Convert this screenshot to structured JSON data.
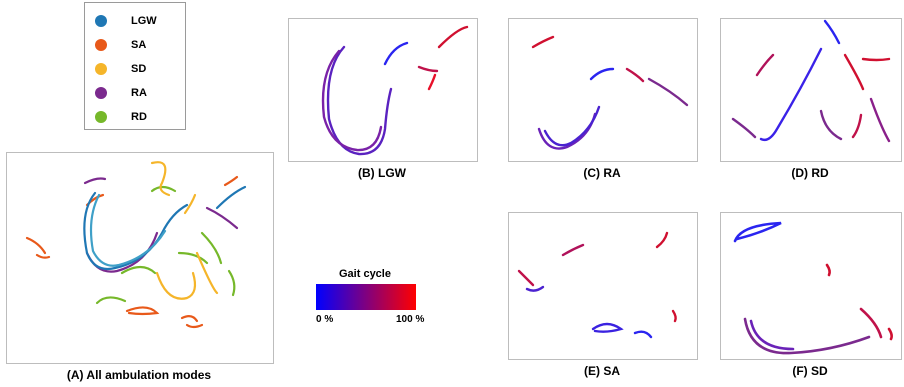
{
  "legend": {
    "items": [
      {
        "label": "LGW",
        "color": "#1f77b4"
      },
      {
        "label": "SA",
        "color": "#e8591a"
      },
      {
        "label": "SD",
        "color": "#f5b52a"
      },
      {
        "label": "RA",
        "color": "#7b2a8e"
      },
      {
        "label": "RD",
        "color": "#76b82a"
      }
    ]
  },
  "colorbar": {
    "title": "Gait cycle",
    "min_label": "0 %",
    "max_label": "100 %",
    "colors": [
      "#0000ff",
      "#ff0000"
    ]
  },
  "chart_data": [
    {
      "type": "scatter",
      "panel": "A",
      "title": "(A) All ambulation modes",
      "series": [
        {
          "name": "LGW"
        },
        {
          "name": "SA"
        },
        {
          "name": "SD"
        },
        {
          "name": "RA"
        },
        {
          "name": "RD"
        }
      ]
    },
    {
      "type": "scatter",
      "panel": "B",
      "title": "(B) LGW",
      "color_scale": "gait cycle 0-100 %"
    },
    {
      "type": "scatter",
      "panel": "C",
      "title": "(C) RA",
      "color_scale": "gait cycle 0-100 %"
    },
    {
      "type": "scatter",
      "panel": "D",
      "title": "(D) RD",
      "color_scale": "gait cycle 0-100 %"
    },
    {
      "type": "scatter",
      "panel": "E",
      "title": "(E) SA",
      "color_scale": "gait cycle 0-100 %"
    },
    {
      "type": "scatter",
      "panel": "F",
      "title": "(F) SD",
      "color_scale": "gait cycle 0-100 %"
    }
  ]
}
